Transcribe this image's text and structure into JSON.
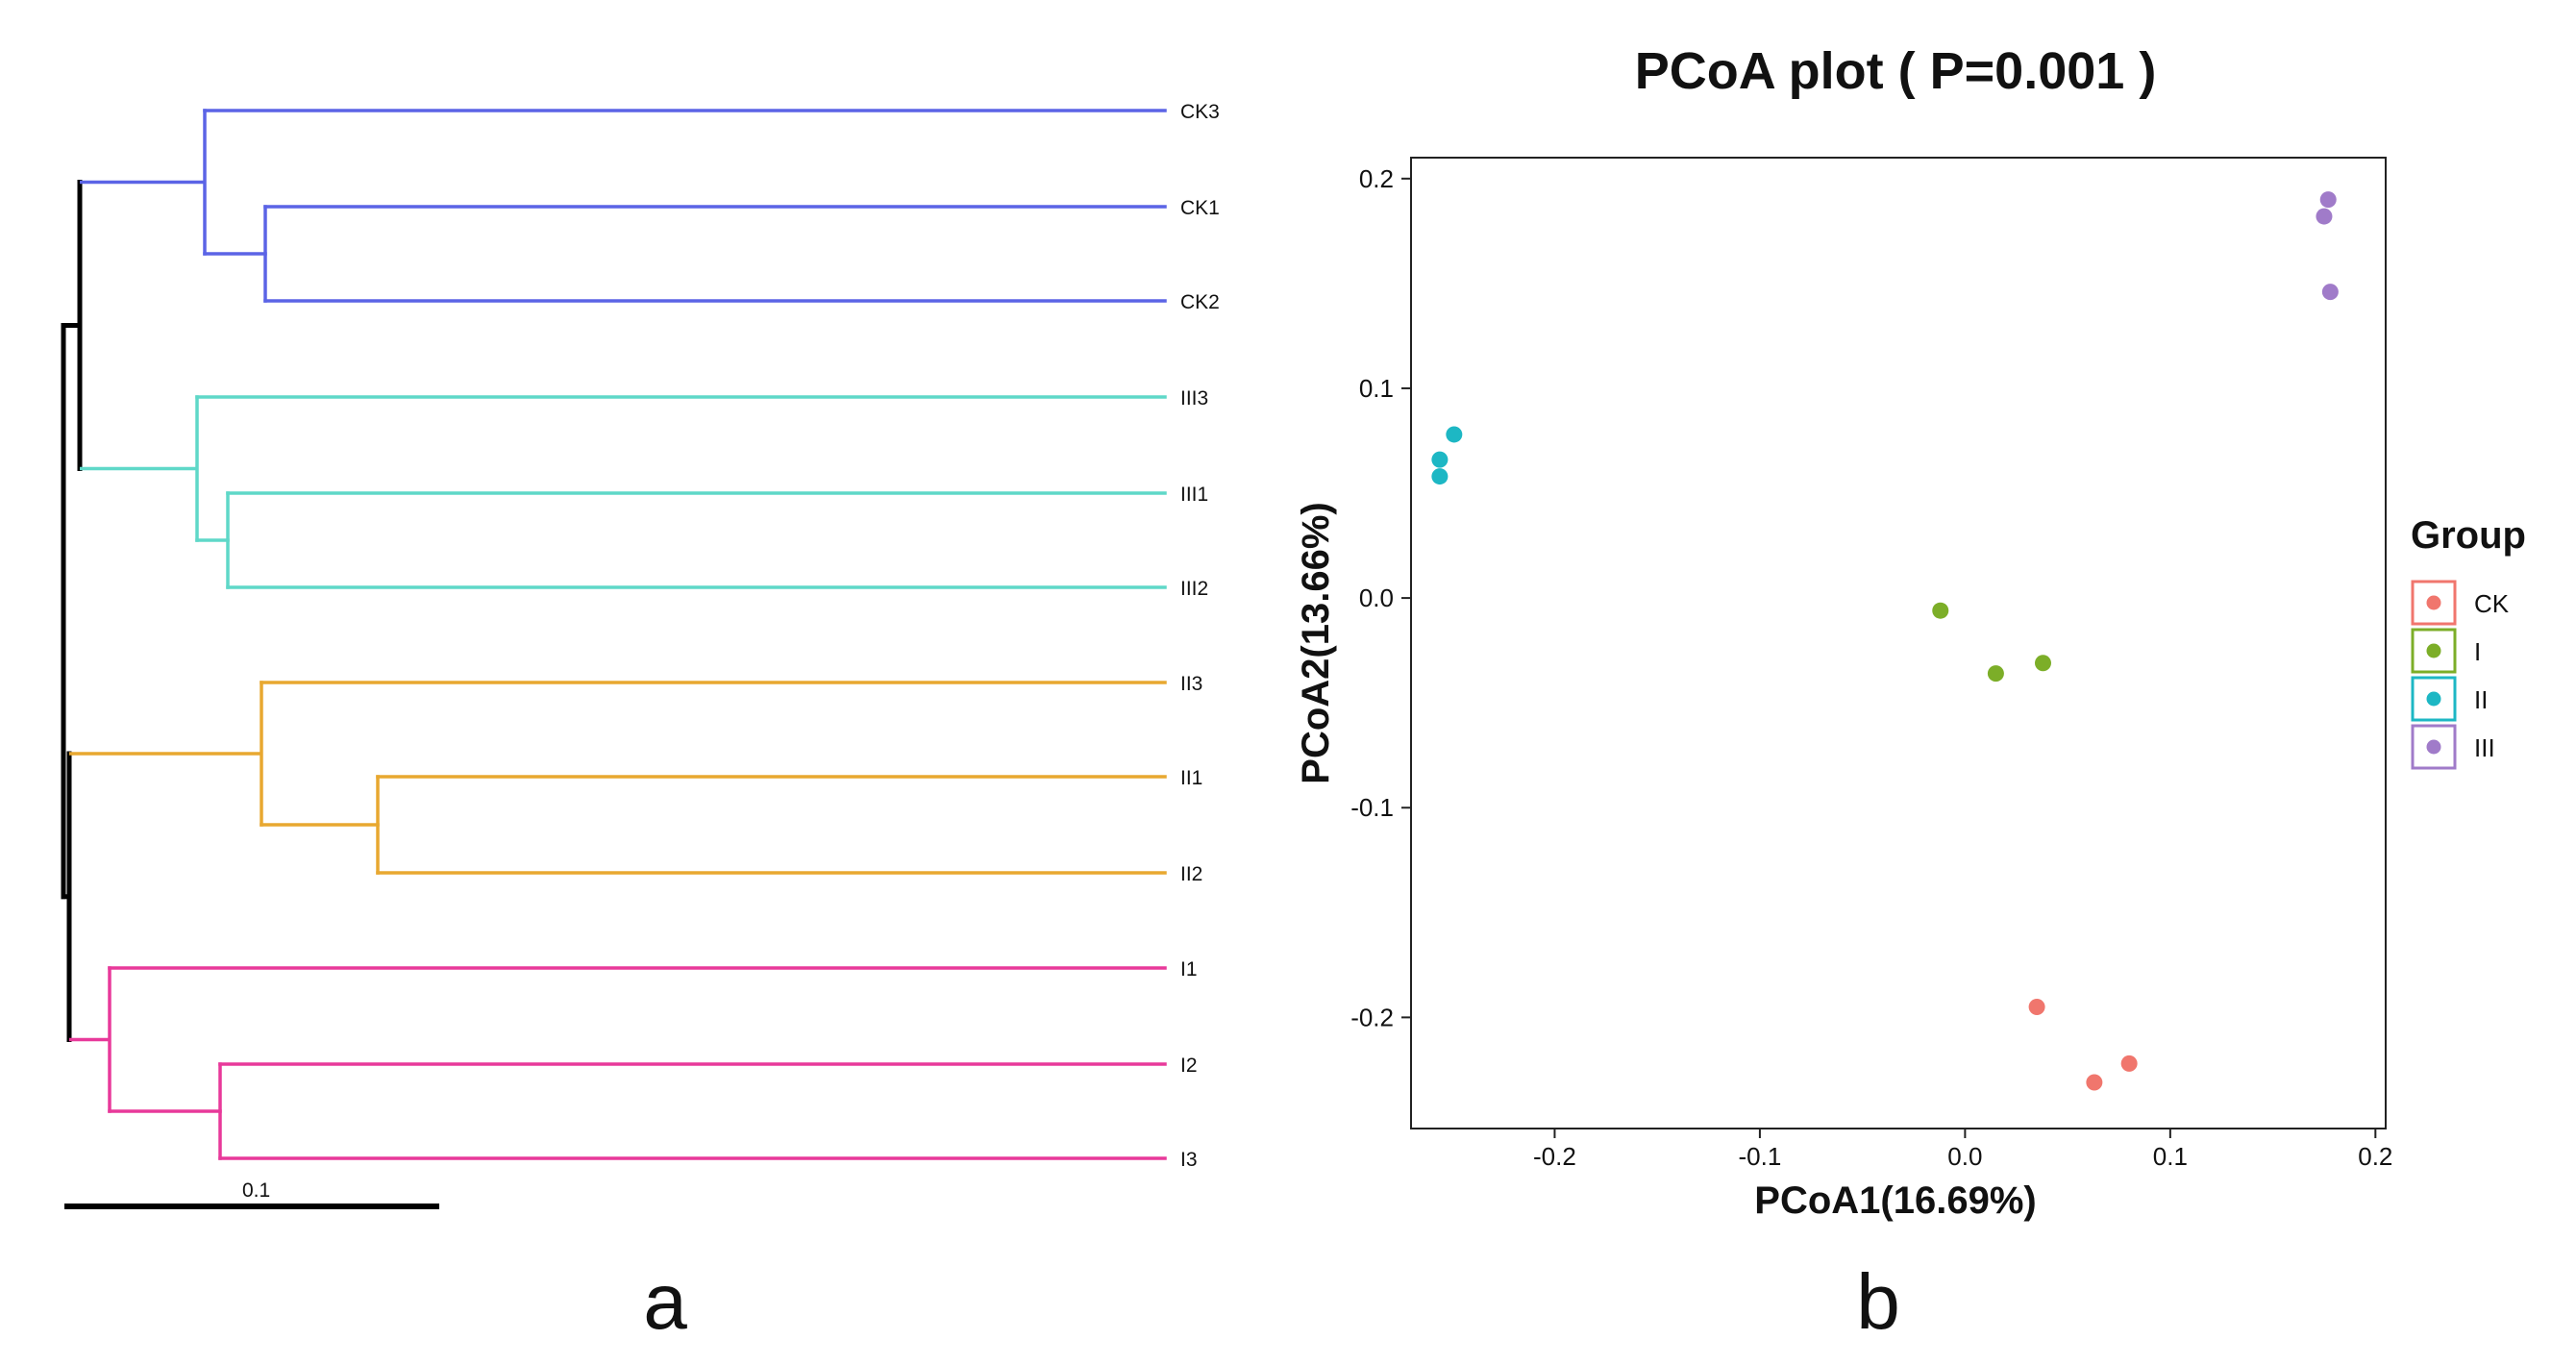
{
  "panels": {
    "a": {
      "label": "a"
    },
    "b": {
      "label": "b"
    }
  },
  "tree": {
    "scale_label": "0.1",
    "root_color": "#000000",
    "groups": [
      {
        "name": "CK",
        "color": "#5B64E6",
        "leaves": [
          "CK3",
          "CK1",
          "CK2"
        ]
      },
      {
        "name": "III",
        "color": "#5FD8C8",
        "leaves": [
          "III3",
          "III1",
          "III2"
        ]
      },
      {
        "name": "II",
        "color": "#E8A830",
        "leaves": [
          "II3",
          "II1",
          "II2"
        ]
      },
      {
        "name": "I",
        "color": "#E8399A",
        "leaves": [
          "I1",
          "I2",
          "I3"
        ]
      }
    ]
  },
  "chart_data": {
    "type": "scatter",
    "title": "PCoA plot ( P=0.001 )",
    "xlabel": "PCoA1(16.69%)",
    "ylabel": "PCoA2(13.66%)",
    "xlim": [
      -0.27,
      0.205
    ],
    "ylim": [
      -0.253,
      0.21
    ],
    "xticks": [
      -0.2,
      -0.1,
      0.0,
      0.1,
      0.2
    ],
    "xtick_labels": [
      "-0.2",
      "-0.1",
      "0.0",
      "0.1",
      "0.2"
    ],
    "yticks": [
      0.2,
      0.1,
      0.0,
      -0.1,
      -0.2
    ],
    "ytick_labels": [
      "0.2",
      "0.1",
      "0.0",
      "-0.1",
      "-0.2"
    ],
    "grid": false,
    "legend_title": "Group",
    "legend_position": "right",
    "series": [
      {
        "name": "CK",
        "color": "#F0766D",
        "points": [
          [
            0.035,
            -0.195
          ],
          [
            0.08,
            -0.222
          ],
          [
            0.063,
            -0.231
          ]
        ]
      },
      {
        "name": "I",
        "color": "#7CAE28",
        "points": [
          [
            -0.012,
            -0.006
          ],
          [
            0.038,
            -0.031
          ],
          [
            0.015,
            -0.036
          ]
        ]
      },
      {
        "name": "II",
        "color": "#1DB7C4",
        "points": [
          [
            -0.249,
            0.078
          ],
          [
            -0.256,
            0.066
          ],
          [
            -0.256,
            0.058
          ]
        ]
      },
      {
        "name": "III",
        "color": "#A07BC9",
        "points": [
          [
            0.177,
            0.19
          ],
          [
            0.175,
            0.182
          ],
          [
            0.178,
            0.146
          ]
        ]
      }
    ]
  }
}
